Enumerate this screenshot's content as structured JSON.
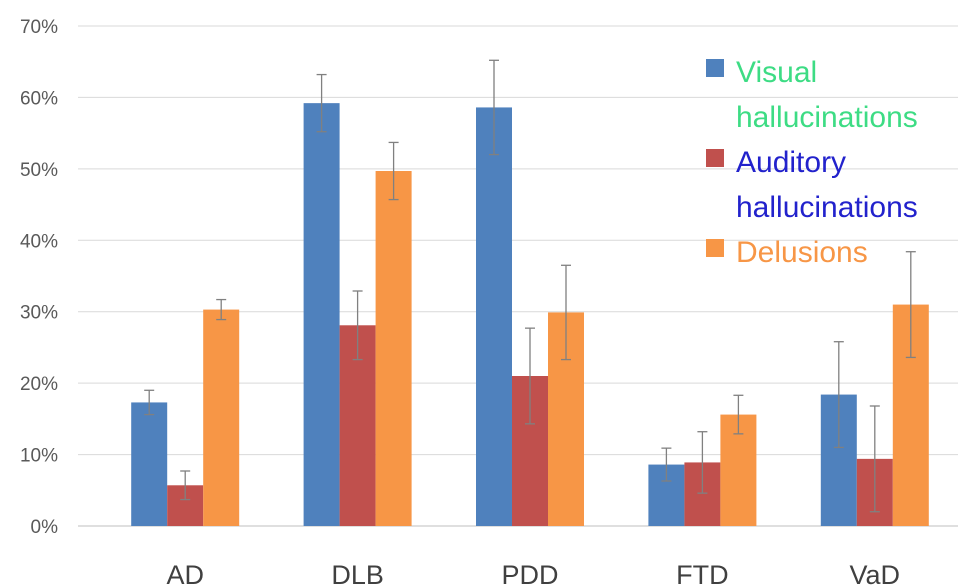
{
  "chart_data": {
    "type": "bar",
    "categories": [
      "AD",
      "DLB",
      "PDD",
      "FTD",
      "VaD"
    ],
    "y_ticks": [
      "0%",
      "10%",
      "20%",
      "30%",
      "40%",
      "50%",
      "60%",
      "70%"
    ],
    "ylim": [
      0,
      70
    ],
    "grid": true,
    "legend_position": "top-right",
    "series": [
      {
        "name": "Visual hallucinations",
        "legend_lines": [
          "Visual",
          "hallucinations"
        ],
        "color": "#4f81bd",
        "label_color": "#3ddc84",
        "values": [
          17.3,
          59.2,
          58.6,
          8.6,
          18.4
        ],
        "errors": [
          1.7,
          4.0,
          6.6,
          2.3,
          7.4
        ]
      },
      {
        "name": "Auditory hallucinations",
        "legend_lines": [
          "Auditory",
          "hallucinations"
        ],
        "color": "#c0504d",
        "label_color": "#2222cc",
        "values": [
          5.7,
          28.1,
          21.0,
          8.9,
          9.4
        ],
        "errors": [
          2.0,
          4.8,
          6.7,
          4.3,
          7.4
        ]
      },
      {
        "name": "Delusions",
        "legend_lines": [
          "Delusions"
        ],
        "color": "#f79646",
        "label_color": "#f79646",
        "values": [
          30.3,
          49.7,
          29.9,
          15.6,
          31.0
        ],
        "errors": [
          1.4,
          4.0,
          6.6,
          2.7,
          7.4
        ]
      }
    ]
  }
}
